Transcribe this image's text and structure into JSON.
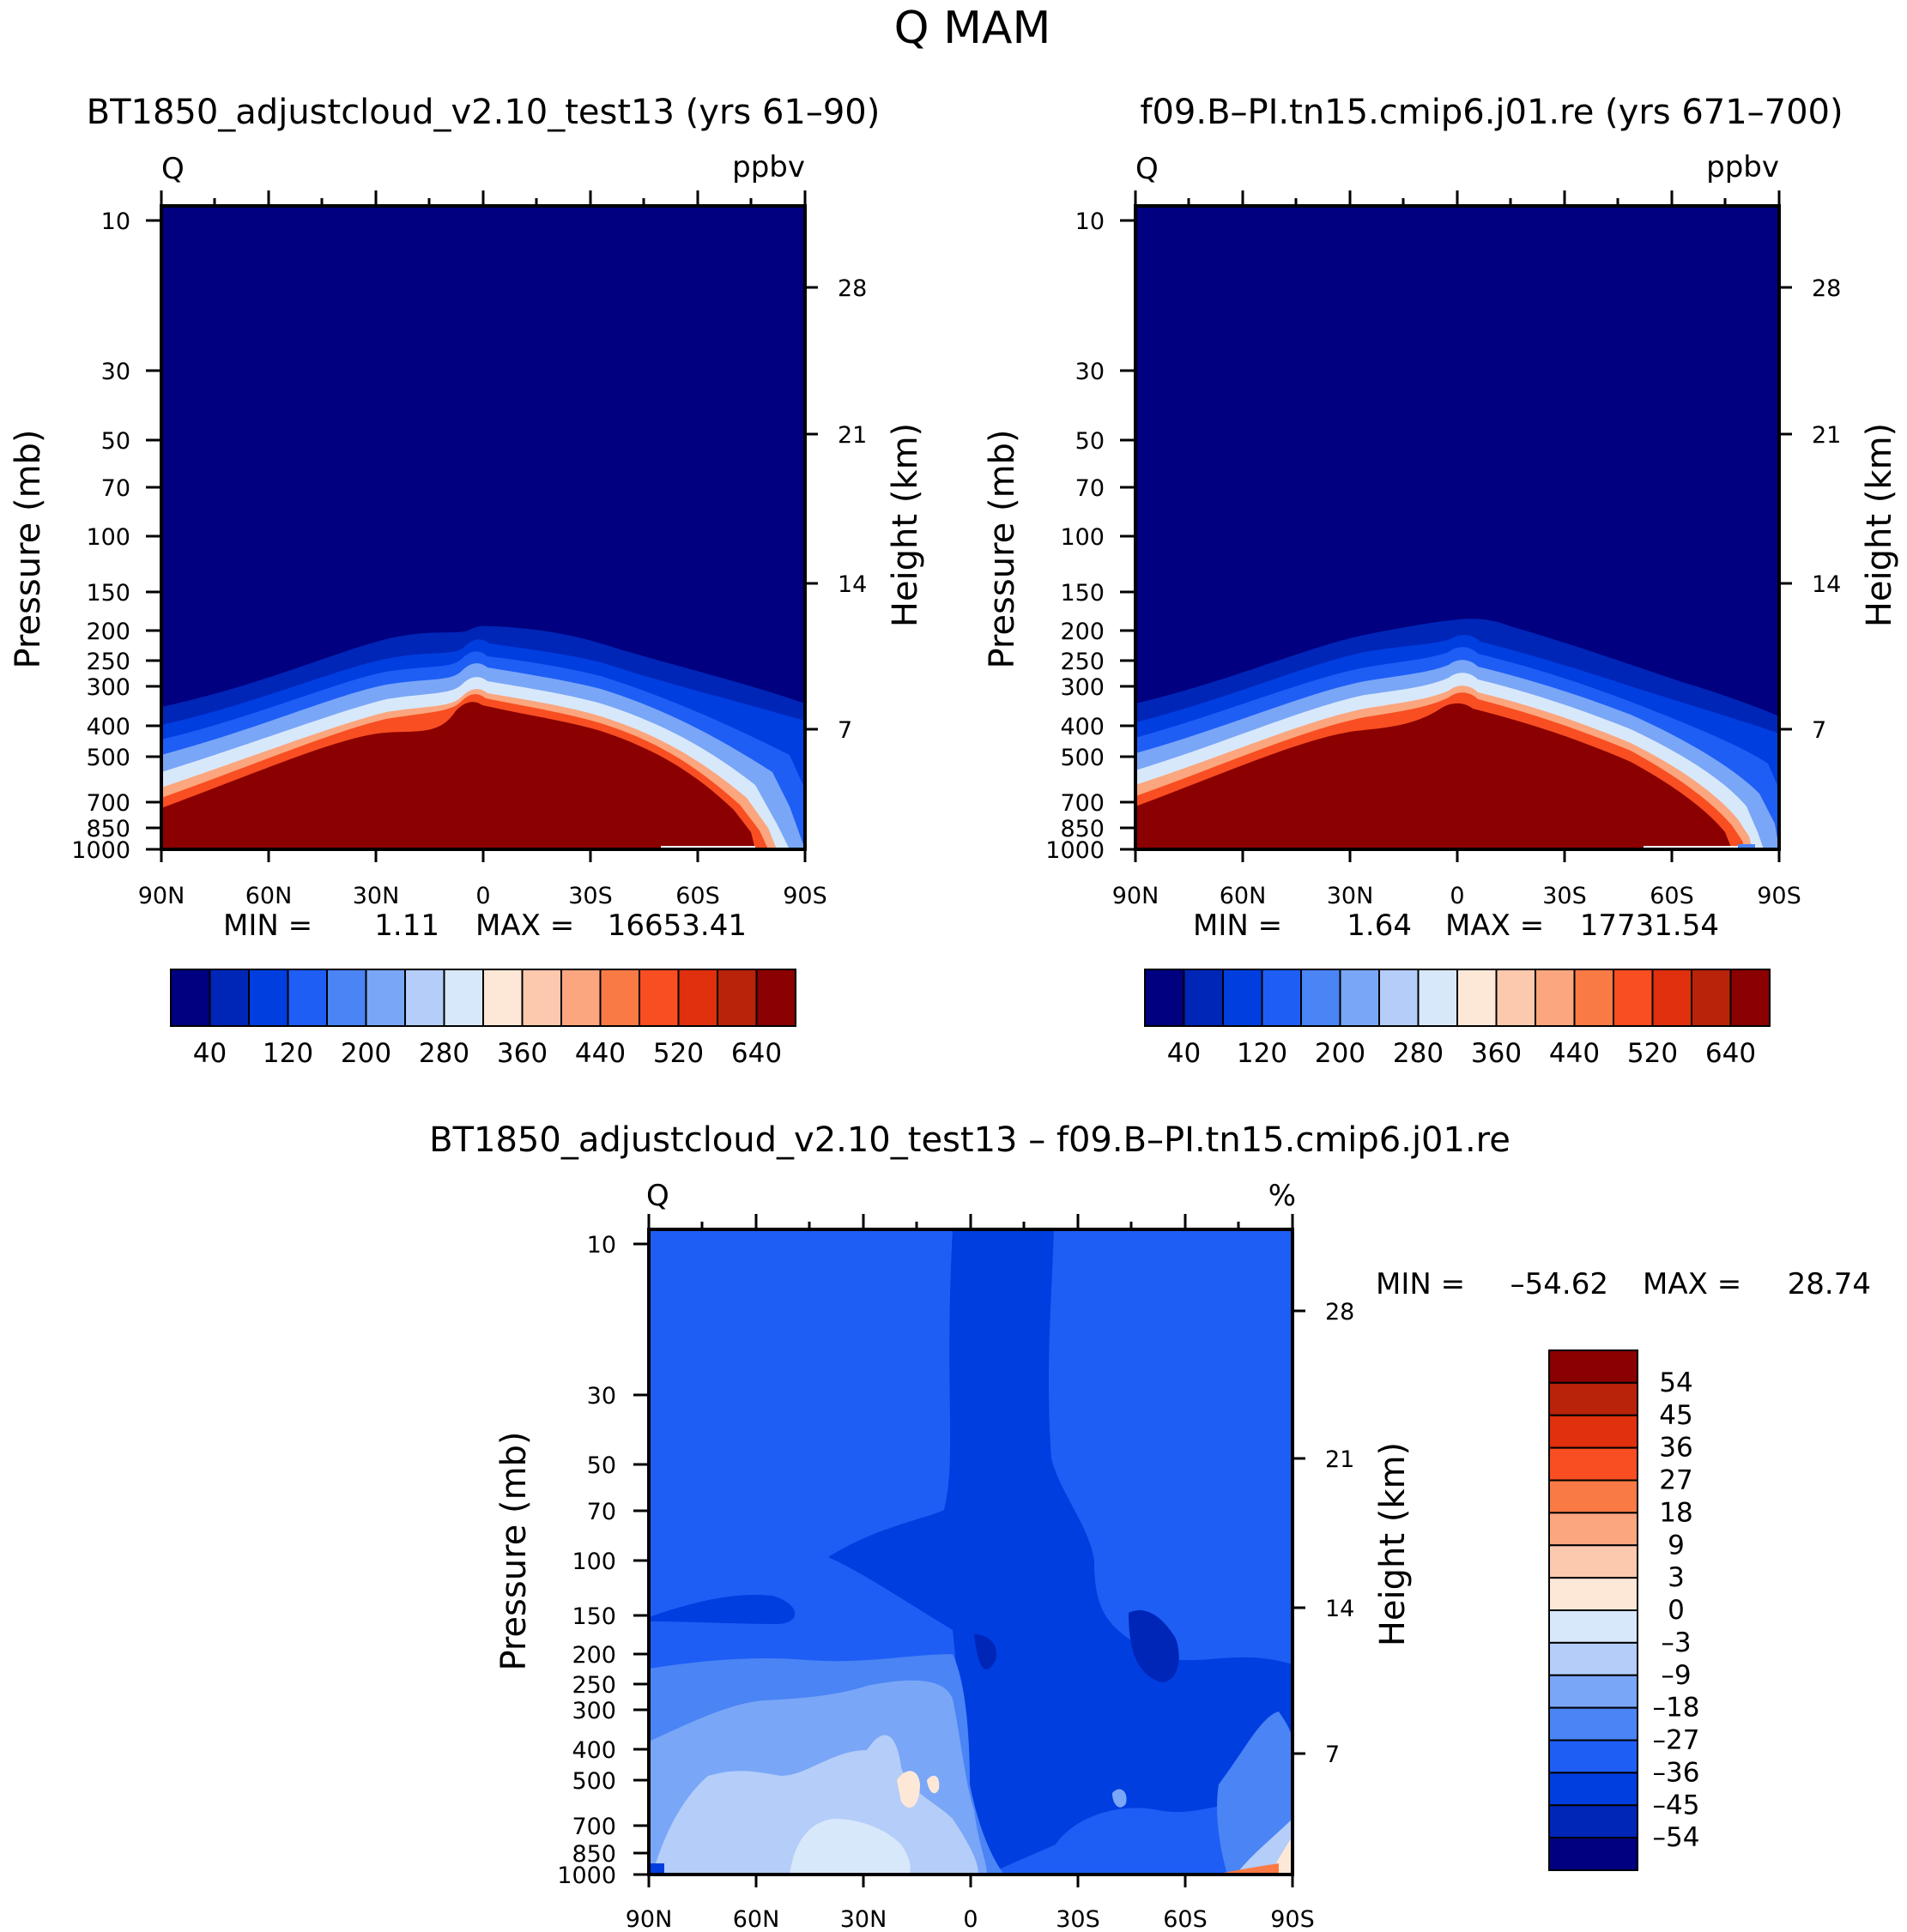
{
  "figure_title": "Q  MAM",
  "chart_data": [
    {
      "type": "contour",
      "title": "BT1850_adjustcloud_v2.10_test13 (yrs 61–90)",
      "variable_label": "Q",
      "units_label": "ppbv",
      "ylabel": "Pressure (mb)",
      "ylabel_right": "Height (km)",
      "x_ticks": [
        "90N",
        "60N",
        "30N",
        "0",
        "30S",
        "60S",
        "90S"
      ],
      "x_values": [
        90,
        60,
        30,
        0,
        -30,
        -60,
        -90
      ],
      "y_ticks": [
        "10",
        "30",
        "50",
        "70",
        "100",
        "150",
        "200",
        "250",
        "300",
        "400",
        "500",
        "700",
        "850",
        "1000"
      ],
      "y_values": [
        10,
        30,
        50,
        70,
        100,
        150,
        200,
        250,
        300,
        400,
        500,
        700,
        850,
        1000
      ],
      "right_ticks": [
        "28",
        "21",
        "14",
        "7"
      ],
      "right_values": [
        28,
        21,
        14,
        7
      ],
      "min_label": "MIN =",
      "min_value": "1.11",
      "max_label": "MAX =",
      "max_value": "16653.41",
      "colorbar_labels": [
        "40",
        "120",
        "200",
        "280",
        "360",
        "440",
        "520",
        "640"
      ],
      "colorbar_colors": [
        "#000080",
        "#0026b8",
        "#003ee0",
        "#1e5ef5",
        "#4a84f5",
        "#7aa6f7",
        "#b4cdf9",
        "#d8e8fb",
        "#fde8d8",
        "#fcc9ae",
        "#fba67e",
        "#fa7a45",
        "#f84e22",
        "#e0300d",
        "#b8230a",
        "#8b0000"
      ]
    },
    {
      "type": "contour",
      "title": "f09.B–PI.tn15.cmip6.j01.re (yrs 671–700)",
      "variable_label": "Q",
      "units_label": "ppbv",
      "ylabel": "Pressure (mb)",
      "ylabel_right": "Height (km)",
      "x_ticks": [
        "90N",
        "60N",
        "30N",
        "0",
        "30S",
        "60S",
        "90S"
      ],
      "x_values": [
        90,
        60,
        30,
        0,
        -30,
        -60,
        -90
      ],
      "y_ticks": [
        "10",
        "30",
        "50",
        "70",
        "100",
        "150",
        "200",
        "250",
        "300",
        "400",
        "500",
        "700",
        "850",
        "1000"
      ],
      "y_values": [
        10,
        30,
        50,
        70,
        100,
        150,
        200,
        250,
        300,
        400,
        500,
        700,
        850,
        1000
      ],
      "right_ticks": [
        "28",
        "21",
        "14",
        "7"
      ],
      "right_values": [
        28,
        21,
        14,
        7
      ],
      "min_label": "MIN =",
      "min_value": "1.64",
      "max_label": "MAX =",
      "max_value": "17731.54",
      "colorbar_labels": [
        "40",
        "120",
        "200",
        "280",
        "360",
        "440",
        "520",
        "640"
      ],
      "colorbar_colors": [
        "#000080",
        "#0026b8",
        "#003ee0",
        "#1e5ef5",
        "#4a84f5",
        "#7aa6f7",
        "#b4cdf9",
        "#d8e8fb",
        "#fde8d8",
        "#fcc9ae",
        "#fba67e",
        "#fa7a45",
        "#f84e22",
        "#e0300d",
        "#b8230a",
        "#8b0000"
      ]
    },
    {
      "type": "contour",
      "title": "BT1850_adjustcloud_v2.10_test13 – f09.B–PI.tn15.cmip6.j01.re",
      "variable_label": "Q",
      "units_label": "%",
      "ylabel": "Pressure (mb)",
      "ylabel_right": "Height (km)",
      "x_ticks": [
        "90N",
        "60N",
        "30N",
        "0",
        "30S",
        "60S",
        "90S"
      ],
      "x_values": [
        90,
        60,
        30,
        0,
        -30,
        -60,
        -90
      ],
      "y_ticks": [
        "10",
        "30",
        "50",
        "70",
        "100",
        "150",
        "200",
        "250",
        "300",
        "400",
        "500",
        "700",
        "850",
        "1000"
      ],
      "y_values": [
        10,
        30,
        50,
        70,
        100,
        150,
        200,
        250,
        300,
        400,
        500,
        700,
        850,
        1000
      ],
      "right_ticks": [
        "28",
        "21",
        "14",
        "7"
      ],
      "right_values": [
        28,
        21,
        14,
        7
      ],
      "min_label": "MIN =",
      "min_value": "–54.62",
      "max_label": "MAX =",
      "max_value": "28.74",
      "colorbar_labels": [
        "54",
        "45",
        "36",
        "27",
        "18",
        "9",
        "3",
        "0",
        "–3",
        "–9",
        "–18",
        "–27",
        "–36",
        "–45",
        "–54"
      ],
      "colorbar_colors": [
        "#8b0000",
        "#b8230a",
        "#e0300d",
        "#f84e22",
        "#fa7a45",
        "#fba67e",
        "#fcc9ae",
        "#fde8d8",
        "#d8e8fb",
        "#b4cdf9",
        "#7aa6f7",
        "#4a84f5",
        "#1e5ef5",
        "#003ee0",
        "#0026b8",
        "#000080"
      ]
    }
  ]
}
